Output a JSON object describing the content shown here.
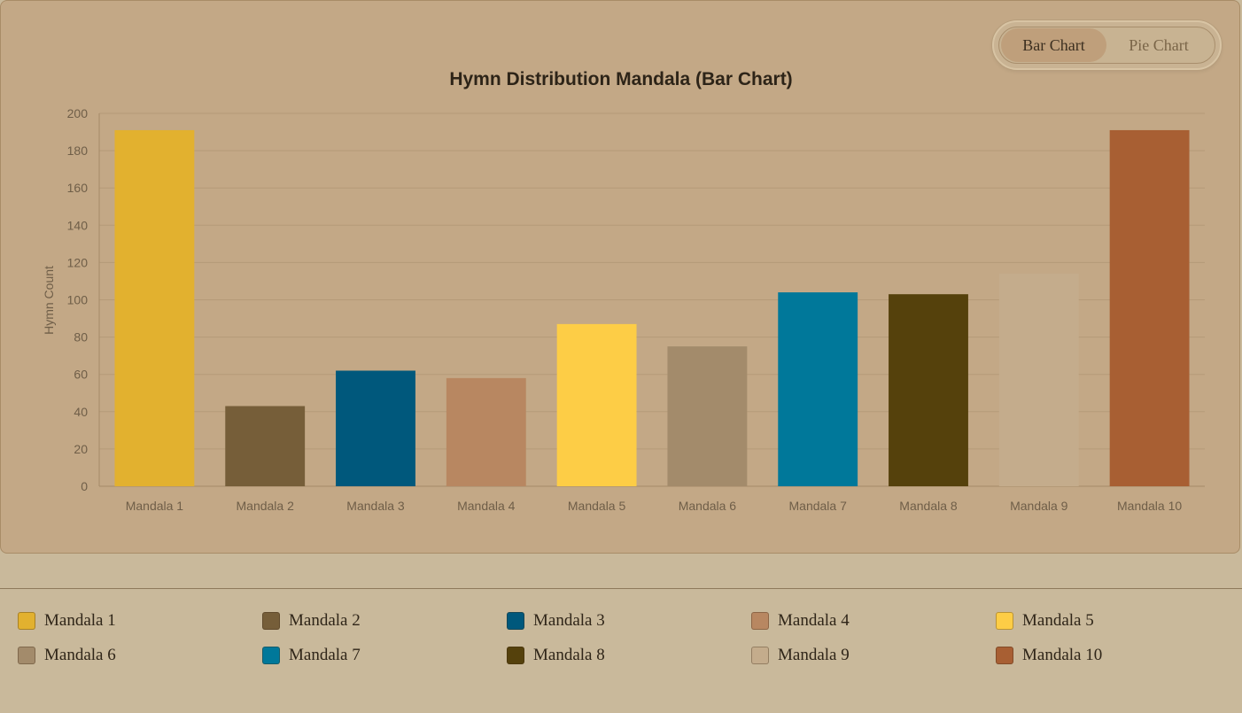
{
  "toggle": {
    "bar_label": "Bar Chart",
    "pie_label": "Pie Chart",
    "active": "bar"
  },
  "chart_data": {
    "type": "bar",
    "title": "Hymn Distribution Mandala (Bar Chart)",
    "ylabel": "Hymn Count",
    "xlabel": "",
    "ylim": [
      0,
      200
    ],
    "yticks": [
      0,
      20,
      40,
      60,
      80,
      100,
      120,
      140,
      160,
      180,
      200
    ],
    "grid": true,
    "categories": [
      "Mandala 1",
      "Mandala 2",
      "Mandala 3",
      "Mandala 4",
      "Mandala 5",
      "Mandala 6",
      "Mandala 7",
      "Mandala 8",
      "Mandala 9",
      "Mandala 10"
    ],
    "values": [
      191,
      43,
      62,
      58,
      87,
      75,
      104,
      103,
      114,
      191
    ],
    "colors": [
      "#e2b12f",
      "#765e39",
      "#00587c",
      "#b88761",
      "#fdcd46",
      "#a38b6b",
      "#00789a",
      "#55410c",
      "#c4ac8c",
      "#a85f33"
    ],
    "legend_position": "bottom"
  }
}
